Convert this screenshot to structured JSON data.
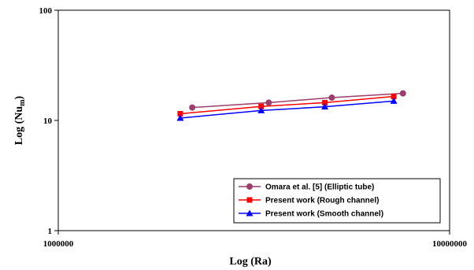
{
  "chart_data": {
    "type": "line",
    "x_scale": "log",
    "y_scale": "log",
    "xlim": [
      1000000,
      10000000
    ],
    "ylim": [
      1,
      100
    ],
    "xlabel": "Log (Ra)",
    "ylabel_main": "Log (Nu",
    "ylabel_sub": "m",
    "ylabel_close": ")",
    "x_ticks": [
      "1000000",
      "10000000"
    ],
    "y_ticks": [
      "1",
      "10",
      "100"
    ],
    "grid": false,
    "legend_position": "bottom-right",
    "series": [
      {
        "name": "Omara et al. [5] (Elliptic tube)",
        "color": "#9c3d6b",
        "marker": "circle",
        "x": [
          2200000,
          3450000,
          5000000,
          7600000
        ],
        "y": [
          13.1,
          14.5,
          16.1,
          17.6
        ]
      },
      {
        "name": "Present work (Rough channel)",
        "color": "#ff0000",
        "marker": "square",
        "x": [
          2050000,
          3300000,
          4800000,
          7200000
        ],
        "y": [
          11.5,
          13.4,
          14.5,
          16.5
        ]
      },
      {
        "name": "Present work (Smooth channel)",
        "color": "#0000ff",
        "marker": "triangle",
        "x": [
          2050000,
          3300000,
          4800000,
          7200000
        ],
        "y": [
          10.5,
          12.3,
          13.3,
          15.0
        ]
      }
    ]
  }
}
